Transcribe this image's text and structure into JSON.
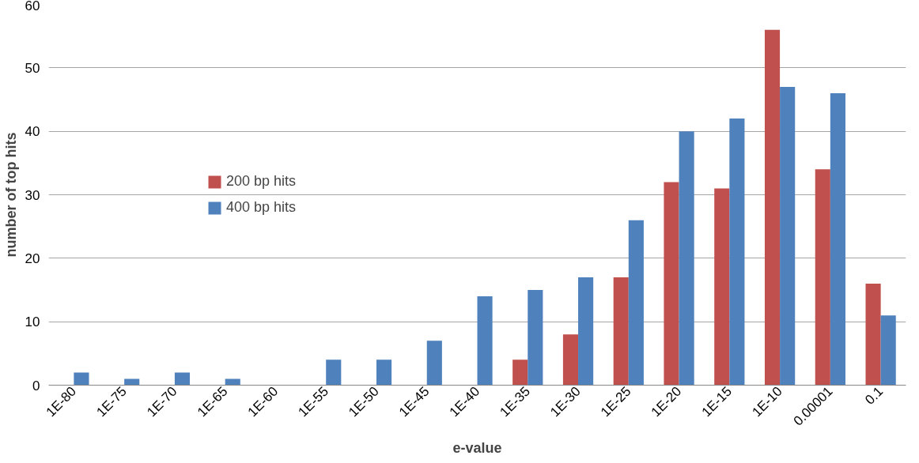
{
  "chart_data": {
    "type": "bar",
    "xlabel": "e-value",
    "ylabel": "number of top hits",
    "categories": [
      "1E-80",
      "1E-75",
      "1E-70",
      "1E-65",
      "1E-60",
      "1E-55",
      "1E-50",
      "1E-45",
      "1E-40",
      "1E-35",
      "1E-30",
      "1E-25",
      "1E-20",
      "1E-15",
      "1E-10",
      "0.00001",
      "0.1"
    ],
    "series": [
      {
        "name": "200 bp hits",
        "color": "#c0504d",
        "values": [
          0,
          0,
          0,
          0,
          0,
          0,
          0,
          0,
          0,
          4,
          8,
          17,
          32,
          31,
          56,
          34,
          16
        ]
      },
      {
        "name": "400 bp hits",
        "color": "#4f81bd",
        "values": [
          2,
          1,
          2,
          1,
          0,
          4,
          4,
          7,
          14,
          15,
          17,
          26,
          40,
          42,
          47,
          46,
          11
        ]
      }
    ],
    "ylim": [
      0,
      60
    ],
    "yticks": [
      0,
      10,
      20,
      30,
      40,
      50,
      60
    ],
    "grid": "y",
    "legend": "left"
  }
}
